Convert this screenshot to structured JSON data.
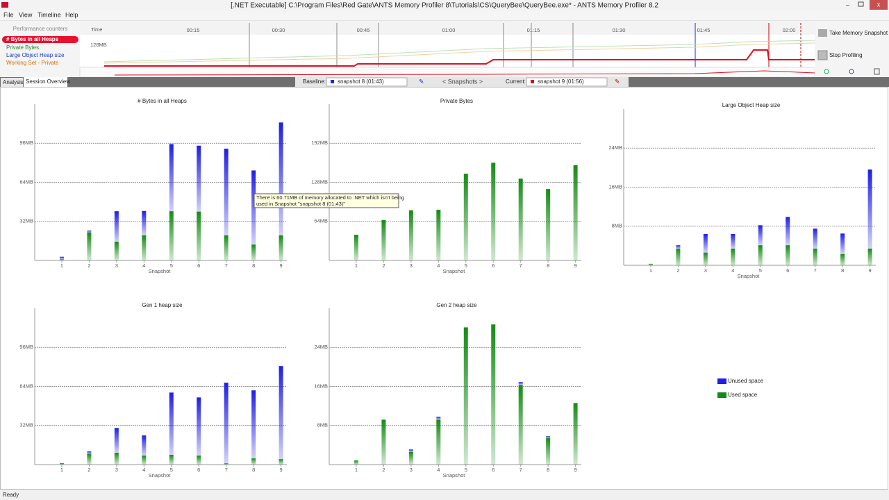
{
  "window": {
    "title": "[.NET Executable] C:\\Program Files\\Red Gate\\ANTS Memory Profiler 8\\Tutorials\\CS\\QueryBee\\QueryBee.exe* - ANTS Memory Profiler 8.2"
  },
  "menu": [
    "File",
    "View",
    "Timeline",
    "Help"
  ],
  "counters": {
    "title": "Performance counters",
    "items": [
      "# Bytes in all Heaps",
      "Private Bytes",
      "Large Object Heap size",
      "Working Set - Private"
    ]
  },
  "timeline": {
    "time_label": "Time",
    "scale_label": "128MB",
    "ticks": [
      "00:15",
      "00:30",
      "00:45",
      "01:00",
      "01:15",
      "01:30",
      "01:45",
      "02:00"
    ]
  },
  "actions": [
    "Take Memory Snapshot",
    "Stop Profiling"
  ],
  "tabs": [
    "Analysis",
    "Session Overview"
  ],
  "selector": {
    "baseline_label": "Baseline:",
    "baseline": "snapshot 8 (01:43)",
    "nav": "< Snapshots >",
    "current_label": "Current:",
    "current": "snapshot 9 (01:56)"
  },
  "tooltip": {
    "lines": [
      "There is 60.71MB of memory allocated to .NET which isn't being",
      "used in Snapshot \"snapshot 8 (01:43)\""
    ]
  },
  "status": "Ready",
  "chart_data": [
    {
      "type": "bar",
      "title": "# Bytes in all Heaps",
      "xlabel": "Snapshot",
      "categories": [
        "1",
        "2",
        "3",
        "4",
        "5",
        "6",
        "7",
        "8",
        "9"
      ],
      "series": [
        {
          "name": "Used space",
          "color": "#148c14",
          "values": [
            1,
            23,
            15.3,
            20.5,
            40.3,
            40,
            20.5,
            13,
            20.5
          ]
        },
        {
          "name": "Unused space",
          "color": "#1e1ee6",
          "values": [
            2,
            1.5,
            25,
            20,
            55,
            54,
            71,
            60.7,
            92.5
          ]
        }
      ],
      "ylim": [
        0,
        128
      ],
      "yticks": [
        {
          "value": 32,
          "label": "32MB"
        },
        {
          "value": 64,
          "label": "64MB"
        },
        {
          "value": 96,
          "label": "96MB"
        }
      ],
      "grid": true
    },
    {
      "type": "bar",
      "title": "Private Bytes",
      "xlabel": "Snapshot",
      "categories": [
        "1",
        "2",
        "3",
        "4",
        "5",
        "6",
        "7",
        "8",
        "9"
      ],
      "series": [
        {
          "name": "Used space",
          "color": "#148c14",
          "values": [
            42,
            66,
            82,
            83,
            142,
            160,
            134,
            117,
            156
          ]
        }
      ],
      "ylim": [
        0,
        256
      ],
      "yticks": [
        {
          "value": 64,
          "label": "64MB"
        },
        {
          "value": 128,
          "label": "128MB"
        },
        {
          "value": 192,
          "label": "192MB"
        }
      ],
      "grid": true
    },
    {
      "type": "bar",
      "title": "Large Object Heap size",
      "xlabel": "Snapshot",
      "categories": [
        "1",
        "2",
        "3",
        "4",
        "5",
        "6",
        "7",
        "8",
        "9"
      ],
      "series": [
        {
          "name": "Used space",
          "color": "#148c14",
          "values": [
            0.3,
            3.4,
            2.6,
            3.4,
            4.1,
            4.1,
            3.4,
            2.3,
            3.4
          ]
        },
        {
          "name": "Unused space",
          "color": "#1e1ee6",
          "values": [
            0,
            0.7,
            3.8,
            3,
            4.1,
            5.8,
            4.1,
            4.2,
            16.2
          ]
        }
      ],
      "ylim": [
        0,
        32
      ],
      "yticks": [
        {
          "value": 8,
          "label": "8MB"
        },
        {
          "value": 16,
          "label": "16MB"
        },
        {
          "value": 24,
          "label": "24MB"
        }
      ],
      "grid": true
    },
    {
      "type": "bar",
      "title": "Gen 1 heap size",
      "xlabel": "Snapshot",
      "categories": [
        "1",
        "2",
        "3",
        "4",
        "5",
        "6",
        "7",
        "8",
        "9"
      ],
      "series": [
        {
          "name": "Used space",
          "color": "#148c14",
          "values": [
            0.3,
            9,
            9.7,
            7.4,
            8,
            7.4,
            1.1,
            5.1,
            4.5
          ]
        },
        {
          "name": "Unused space",
          "color": "#1e1ee6",
          "values": [
            0.8,
            1.8,
            20.3,
            16.5,
            51,
            47.6,
            66,
            55.7,
            76.2
          ]
        }
      ],
      "ylim": [
        0,
        128
      ],
      "yticks": [
        {
          "value": 32,
          "label": "32MB"
        },
        {
          "value": 64,
          "label": "64MB"
        },
        {
          "value": 96,
          "label": "96MB"
        }
      ],
      "grid": true
    },
    {
      "type": "bar",
      "title": "Gen 2 heap size",
      "xlabel": "Snapshot",
      "categories": [
        "1",
        "2",
        "3",
        "4",
        "5",
        "6",
        "7",
        "8",
        "9"
      ],
      "series": [
        {
          "name": "Used space",
          "color": "#148c14",
          "values": [
            0.85,
            9.2,
            2.6,
            9.2,
            28.1,
            28.7,
            16.3,
            5.4,
            12.6
          ]
        },
        {
          "name": "Unused space",
          "color": "#1e1ee6",
          "values": [
            0,
            0,
            0.5,
            0.6,
            0,
            0,
            0.6,
            0.4,
            0
          ]
        }
      ],
      "ylim": [
        0,
        32
      ],
      "yticks": [
        {
          "value": 8,
          "label": "8MB"
        },
        {
          "value": 16,
          "label": "16MB"
        },
        {
          "value": 24,
          "label": "24MB"
        }
      ],
      "grid": true
    }
  ]
}
